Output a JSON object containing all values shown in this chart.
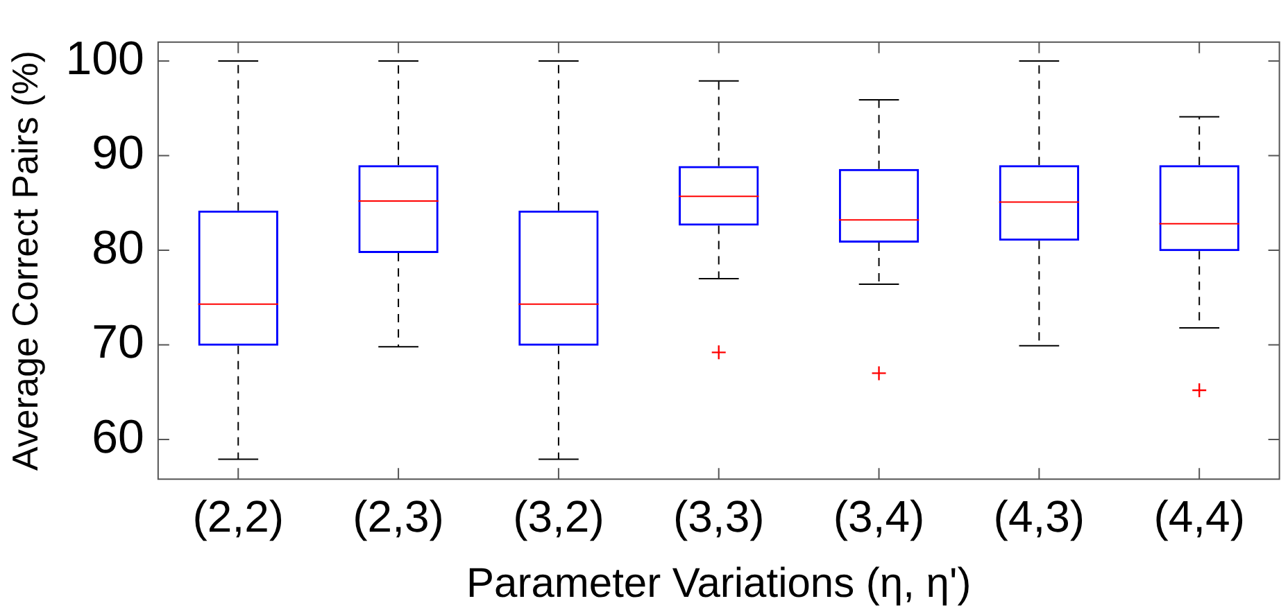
{
  "chart_data": {
    "type": "box",
    "xlabel": "Parameter Variations (η, η')",
    "ylabel": "Average Correct Pairs (%)",
    "categories": [
      "(2,2)",
      "(2,3)",
      "(3,2)",
      "(3,3)",
      "(3,4)",
      "(4,3)",
      "(4,4)"
    ],
    "ylim": [
      55.8,
      102
    ],
    "yticks": [
      60,
      70,
      80,
      90,
      100
    ],
    "series": [
      {
        "color": "#0000ff",
        "boxes": [
          {
            "low": 57.9,
            "q1": 69.9,
            "median": 74.3,
            "q3": 84.2,
            "high": 100
          },
          {
            "low": 69.8,
            "q1": 79.7,
            "median": 85.2,
            "q3": 89.0,
            "high": 100
          },
          {
            "low": 57.9,
            "q1": 69.9,
            "median": 74.3,
            "q3": 84.2,
            "high": 100
          },
          {
            "low": 77.0,
            "q1": 82.6,
            "median": 85.7,
            "q3": 88.9,
            "high": 97.9,
            "outliers": [
              69.2
            ]
          },
          {
            "low": 76.4,
            "q1": 80.8,
            "median": 83.2,
            "q3": 88.6,
            "high": 95.9,
            "outliers": [
              67.0
            ]
          },
          {
            "low": 69.9,
            "q1": 81.0,
            "median": 85.1,
            "q3": 89.0,
            "high": 100
          },
          {
            "low": 71.8,
            "q1": 79.9,
            "median": 82.8,
            "q3": 89.0,
            "high": 94.1,
            "outliers": [
              65.2
            ]
          }
        ]
      }
    ]
  }
}
